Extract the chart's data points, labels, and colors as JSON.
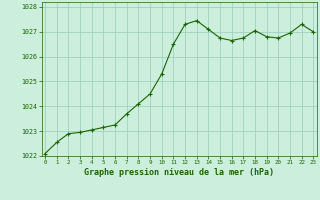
{
  "x_values": [
    0,
    1,
    2,
    3,
    4,
    5,
    6,
    7,
    8,
    9,
    10,
    11,
    12,
    13,
    14,
    15,
    16,
    17,
    18,
    19,
    20,
    21,
    22,
    23
  ],
  "y_values": [
    1022.1,
    1022.55,
    1022.9,
    1022.95,
    1023.05,
    1023.15,
    1023.25,
    1023.7,
    1024.1,
    1024.5,
    1025.3,
    1026.5,
    1027.3,
    1027.45,
    1027.1,
    1026.75,
    1026.65,
    1026.75,
    1027.05,
    1026.8,
    1026.75,
    1026.95,
    1027.3,
    1027.0
  ],
  "ylim": [
    1022.0,
    1028.2
  ],
  "yticks": [
    1022,
    1023,
    1024,
    1025,
    1026,
    1027,
    1028
  ],
  "xticks": [
    0,
    1,
    2,
    3,
    4,
    5,
    6,
    7,
    8,
    9,
    10,
    11,
    12,
    13,
    14,
    15,
    16,
    17,
    18,
    19,
    20,
    21,
    22,
    23
  ],
  "line_color": "#1a6600",
  "marker_color": "#1a6600",
  "bg_color": "#cceedd",
  "grid_color": "#99ccbb",
  "xlabel": "Graphe pression niveau de la mer (hPa)",
  "xlabel_color": "#1a6600",
  "tick_color": "#1a6600"
}
